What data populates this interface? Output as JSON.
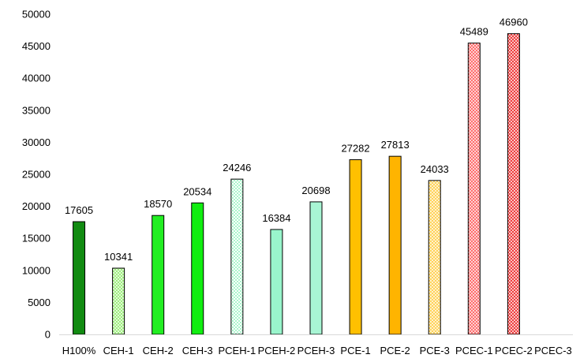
{
  "chart_data": {
    "type": "bar",
    "title": "",
    "xlabel": "",
    "ylabel": "",
    "ylim": [
      0,
      50000
    ],
    "yticks": [
      0,
      5000,
      10000,
      15000,
      20000,
      25000,
      30000,
      35000,
      40000,
      45000,
      50000
    ],
    "grid": false,
    "legend": "none",
    "categories": [
      "H100%",
      "CEH-1",
      "CEH-2",
      "CEH-3",
      "PCEH-1",
      "PCEH-2",
      "PCEH-3",
      "PCE-1",
      "PCE-2",
      "PCE-3",
      "PCEC-1",
      "PCEC-2",
      "PCEC-3"
    ],
    "values": [
      17605,
      10341,
      18570,
      20534,
      24246,
      16384,
      20698,
      27282,
      27813,
      24033,
      45489,
      46960,
      null
    ],
    "data_labels": [
      "17605",
      "10341",
      "18570",
      "20534",
      "24246",
      "16384",
      "20698",
      "27282",
      "27813",
      "24033",
      "45489",
      "46960",
      ""
    ],
    "bar_styles": [
      {
        "fill": "#128b12",
        "pattern": "solid"
      },
      {
        "fill": "#99ee77",
        "pattern": "crosshatch"
      },
      {
        "fill": "#22ee22",
        "pattern": "solid"
      },
      {
        "fill": "#11ee11",
        "pattern": "solid"
      },
      {
        "fill": "#aaf5cc",
        "pattern": "dotted"
      },
      {
        "fill": "#99f5cc",
        "pattern": "solid"
      },
      {
        "fill": "#a8f5d4",
        "pattern": "solid"
      },
      {
        "fill": "#ffc000",
        "pattern": "solid"
      },
      {
        "fill": "#ffb400",
        "pattern": "solid"
      },
      {
        "fill": "#ffd050",
        "pattern": "crosshatch"
      },
      {
        "fill": "#ff6666",
        "pattern": "crosshatch"
      },
      {
        "fill": "#ee3333",
        "pattern": "crosshatch"
      },
      {
        "fill": "#ff6666",
        "pattern": "solid"
      }
    ]
  }
}
